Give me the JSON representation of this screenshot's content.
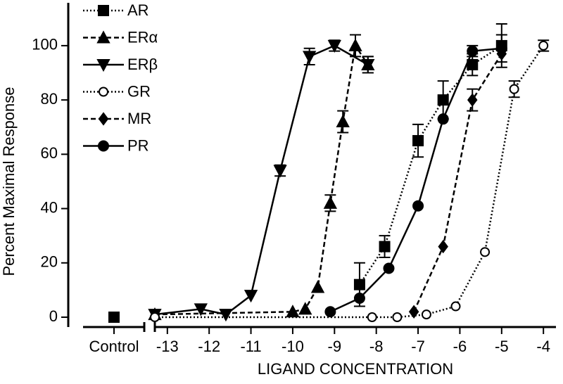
{
  "chart_data": {
    "type": "line",
    "ylabel": "Percent Maximal Response",
    "xlabel": "LIGAND CONCENTRATION",
    "control_label": "Control",
    "xlim": [
      -13.3,
      -3.7
    ],
    "xticks": [
      -13,
      -12,
      -11,
      -10,
      -9,
      -8,
      -7,
      -6,
      -5,
      -4
    ],
    "ylim": [
      0,
      115
    ],
    "yticks": [
      0,
      20,
      40,
      60,
      80,
      100
    ],
    "series": [
      {
        "name": "AR",
        "color": "#000000",
        "dash": "dotted",
        "marker": "square",
        "control": 0,
        "x": [
          -8.4,
          -7.8,
          -7,
          -6.4,
          -5.7,
          -5
        ],
        "values": [
          12,
          26,
          65,
          80,
          93,
          100
        ],
        "errors": [
          8,
          4,
          6,
          7,
          4,
          8
        ]
      },
      {
        "name": "ERα",
        "color": "#000000",
        "dash": "dashed",
        "marker": "triangle-up",
        "x": [
          -13.3,
          -10,
          -9.7,
          -9.4,
          -9.1,
          -8.8,
          -8.5,
          -8.2
        ],
        "values": [
          1,
          2,
          3,
          11,
          42,
          72,
          100,
          93
        ],
        "errors": [
          null,
          null,
          null,
          null,
          3,
          4,
          4,
          3
        ]
      },
      {
        "name": "ERβ",
        "color": "#000000",
        "dash": "solid",
        "marker": "triangle-down",
        "x": [
          -13.3,
          -12.2,
          -11.6,
          -11,
          -10.3,
          -9.6,
          -9,
          -8.2
        ],
        "values": [
          1,
          3,
          1,
          8,
          54,
          96,
          100,
          93
        ],
        "errors": [
          null,
          null,
          null,
          null,
          2,
          3,
          2,
          3
        ]
      },
      {
        "name": "GR",
        "color": "#000000",
        "dash": "dotted",
        "marker": "circle-open",
        "x": [
          -13.3,
          -8.1,
          -7.5,
          -6.8,
          -6.1,
          -5.4,
          -4.7,
          -4
        ],
        "values": [
          0,
          0,
          0,
          1,
          4,
          24,
          84,
          100
        ],
        "errors": [
          null,
          null,
          null,
          null,
          null,
          null,
          3,
          2
        ]
      },
      {
        "name": "MR",
        "color": "#000000",
        "dash": "dashed",
        "marker": "diamond",
        "x": [
          -7.1,
          -6.4,
          -5.7,
          -5
        ],
        "values": [
          2,
          26,
          80,
          97
        ],
        "errors": [
          null,
          null,
          4,
          null
        ]
      },
      {
        "name": "PR",
        "color": "#000000",
        "dash": "solid",
        "marker": "circle",
        "x": [
          -9.1,
          -8.4,
          -7.7,
          -7,
          -6.4,
          -5.7,
          -5
        ],
        "values": [
          2,
          7,
          18,
          41,
          73,
          98,
          99
        ],
        "errors": [
          null,
          null,
          null,
          null,
          null,
          2,
          5
        ]
      }
    ]
  }
}
